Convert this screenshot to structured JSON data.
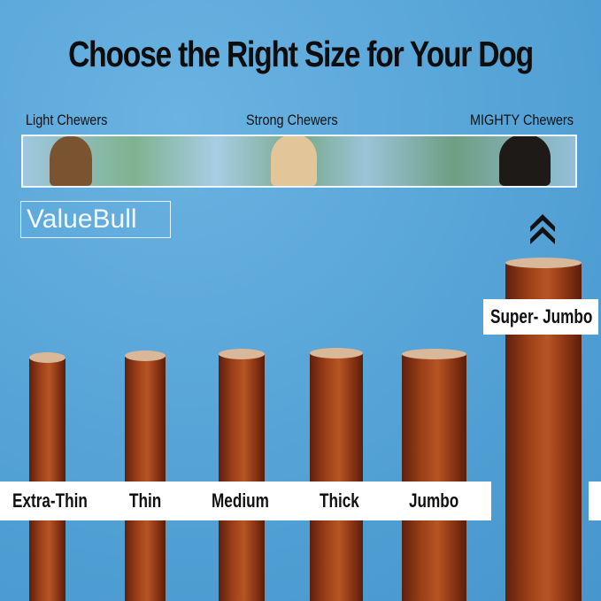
{
  "title": "Choose the Right Size for Your Dog",
  "chewer_labels": [
    "Light Chewers",
    "Strong Chewers",
    "MIGHTY Chewers"
  ],
  "brand": "ValueBull",
  "sizes": [
    "Extra-Thin",
    "Thin",
    "Medium",
    "Thick",
    "Jumbo",
    "Super- Jumbo"
  ],
  "icons": {
    "up": "double-chevron-up-icon"
  },
  "colors": {
    "background": "#5aa6d8",
    "text": "#111111",
    "label_band": "#ffffff"
  }
}
